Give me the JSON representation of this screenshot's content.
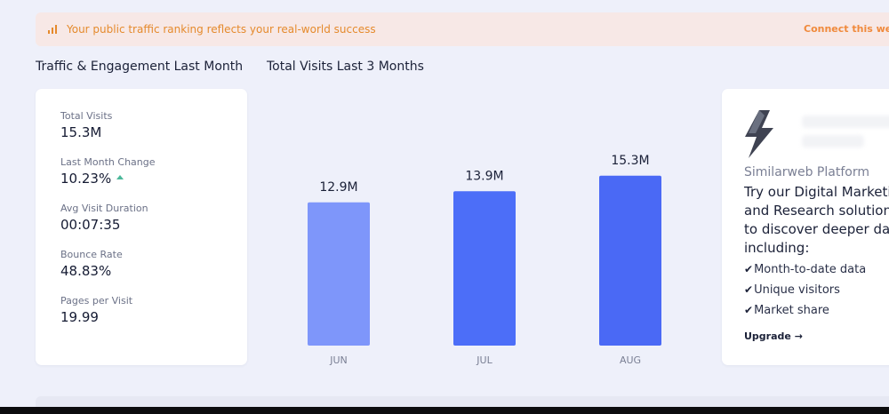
{
  "banner": {
    "text": "Your public traffic ranking reflects your real-world success",
    "link": "Connect this we",
    "color": "#e58a2c"
  },
  "sections": {
    "engagement_title": "Traffic & Engagement Last Month",
    "visits_title": "Total Visits Last 3 Months"
  },
  "metrics": [
    {
      "label": "Total Visits",
      "value": "15.3M"
    },
    {
      "label": "Last Month Change",
      "value": "10.23%",
      "trend": "up"
    },
    {
      "label": "Avg Visit Duration",
      "value": "00:07:35"
    },
    {
      "label": "Bounce Rate",
      "value": "48.83%"
    },
    {
      "label": "Pages per Visit",
      "value": "19.99"
    }
  ],
  "chart_data": {
    "type": "bar",
    "title": "Total Visits Last 3 Months",
    "categories": [
      "JUN",
      "JUL",
      "AUG"
    ],
    "values": [
      12.9,
      13.9,
      15.3
    ],
    "data_labels": [
      "12.9M",
      "13.9M",
      "15.3M"
    ],
    "ylim": [
      0,
      16.4
    ],
    "unit": "M",
    "colors": [
      "#7e96fa",
      "#4c6ef8",
      "#4a69f5"
    ],
    "grid": false
  },
  "promo": {
    "subtitle": "Similarweb Platform",
    "headline_lines": [
      "Try our Digital Marketi",
      "and Research solution",
      "to discover deeper da",
      "including:"
    ],
    "features": [
      "Month-to-date data",
      "Unique visitors",
      "Market share"
    ],
    "upgrade": "Upgrade →",
    "icon": "lightning-bolt-icon"
  }
}
